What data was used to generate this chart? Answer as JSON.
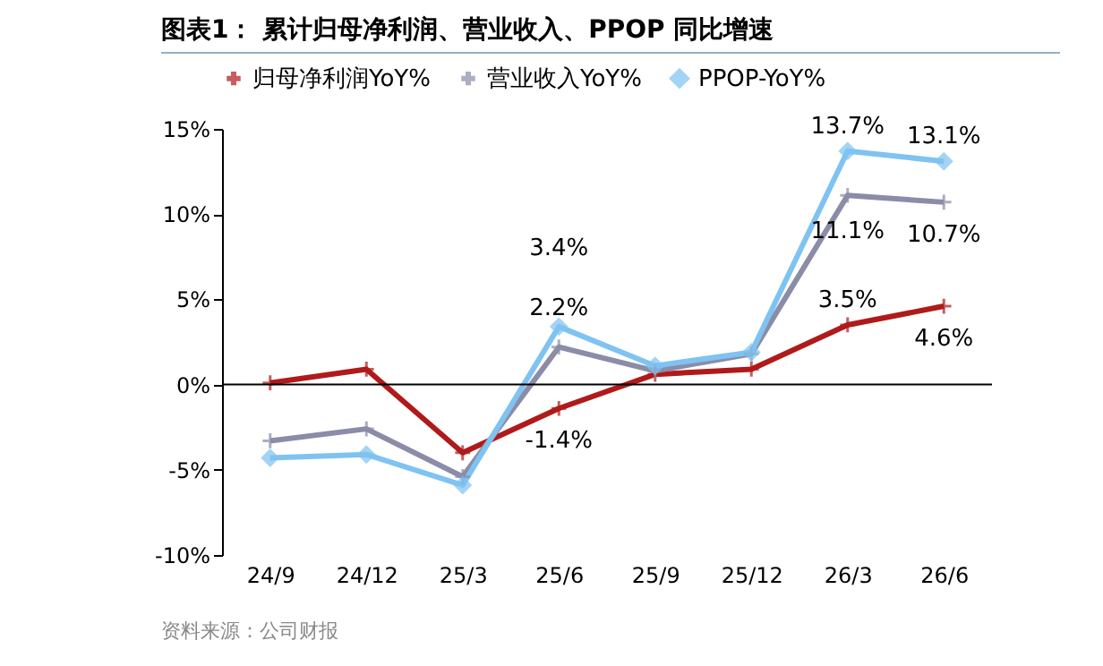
{
  "chart_data": {
    "type": "line",
    "title": "图表1：  累计归母净利润、营业收入、PPOP 同比增速",
    "categories": [
      "24/9",
      "24/12",
      "25/3",
      "25/6",
      "25/9",
      "25/12",
      "26/3",
      "26/6"
    ],
    "series": [
      {
        "name": "归母净利润YoY%",
        "color": "#b01a1a",
        "marker": "cross",
        "values": [
          0.1,
          0.9,
          -4.0,
          -1.4,
          0.6,
          0.9,
          3.5,
          4.6
        ],
        "value_labels": [
          null,
          null,
          null,
          "-1.4%",
          null,
          null,
          "3.5%",
          "4.6%"
        ]
      },
      {
        "name": "营业收入YoY%",
        "color": "#8a8ca8",
        "marker": "cross",
        "values": [
          -3.3,
          -2.6,
          -5.4,
          2.2,
          0.8,
          1.8,
          11.1,
          10.7
        ],
        "value_labels": [
          null,
          null,
          null,
          "2.2%",
          null,
          null,
          "11.1%",
          "10.7%"
        ]
      },
      {
        "name": "PPOP-YoY%",
        "color": "#7ec3f2",
        "marker": "diamond",
        "values": [
          -4.3,
          -4.1,
          -5.9,
          3.4,
          1.1,
          1.9,
          13.7,
          13.1
        ],
        "value_labels": [
          null,
          null,
          null,
          "3.4%",
          null,
          null,
          "13.7%",
          "13.1%"
        ]
      }
    ],
    "ylim": [
      -10,
      15
    ],
    "yticks": [
      {
        "value": -10,
        "label": "-10%"
      },
      {
        "value": -5,
        "label": "-5%"
      },
      {
        "value": 0,
        "label": "0%"
      },
      {
        "value": 5,
        "label": "5%"
      },
      {
        "value": 10,
        "label": "10%"
      },
      {
        "value": 15,
        "label": "15%"
      }
    ],
    "ref_lines": [
      {
        "axis": "y",
        "value": 0,
        "color": "#000000"
      }
    ],
    "grid": false,
    "legend": "top",
    "annotations": [
      "资料来源：公司财报"
    ]
  }
}
